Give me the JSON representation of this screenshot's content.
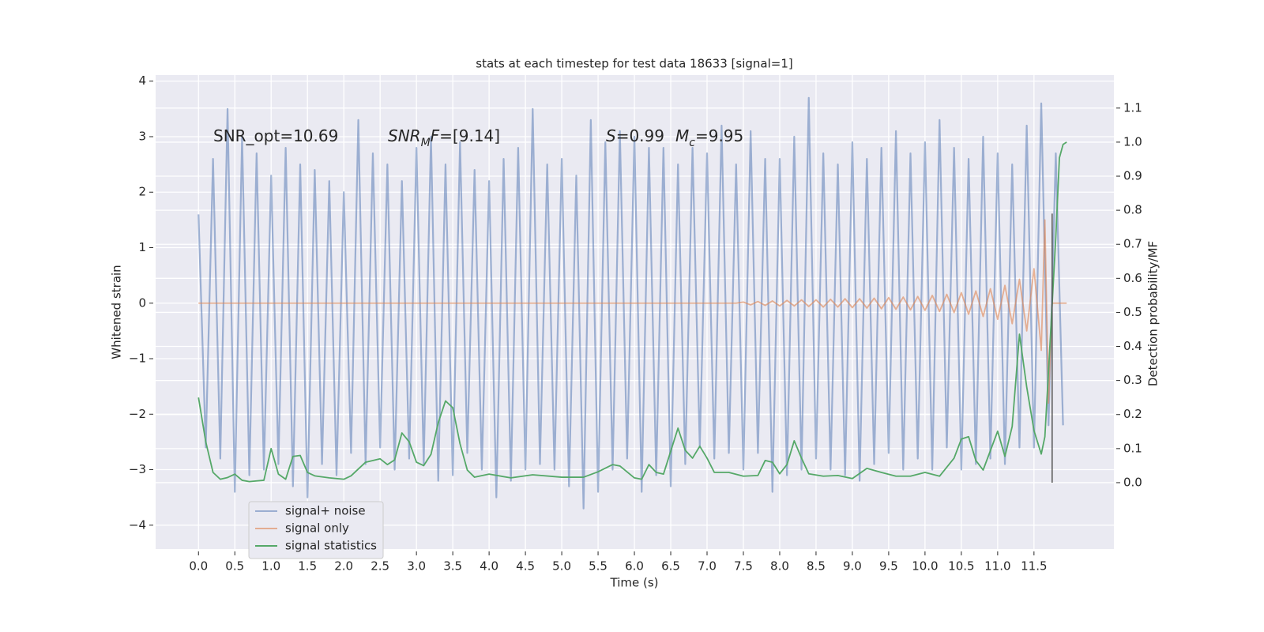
{
  "chart_data": {
    "type": "line",
    "title": "stats at each timestep for test data 18633 [signal=1]",
    "xlabel": "Time (s)",
    "ylabel": "Whitened strain",
    "y2label": "Detection probability/MF",
    "xlim": [
      -0.59,
      12.6
    ],
    "ylim": [
      -4.43,
      4.11
    ],
    "y2lim": [
      -0.195,
      1.197
    ],
    "xticks": [
      {
        "value": 0,
        "label": "0.0"
      },
      0.5,
      {
        "value": 1,
        "label": "1.0"
      },
      1.5,
      {
        "value": 2,
        "label": "2.0"
      },
      2.5,
      {
        "value": 3,
        "label": "3.0"
      },
      3.5,
      {
        "value": 4,
        "label": "4.0"
      },
      4.5,
      {
        "value": 5,
        "label": "5.0"
      },
      5.5,
      {
        "value": 6,
        "label": "6.0"
      },
      6.5,
      {
        "value": 7,
        "label": "7.0"
      },
      7.5,
      {
        "value": 8,
        "label": "8.0"
      },
      8.5,
      {
        "value": 9,
        "label": "9.0"
      },
      9.5,
      {
        "value": 10,
        "label": "10.0"
      },
      10.5,
      {
        "value": 11,
        "label": "11.0"
      },
      11.5
    ],
    "yticks": [
      {
        "value": -4,
        "label": "−4"
      },
      {
        "value": -3,
        "label": "−3"
      },
      {
        "value": -2,
        "label": "−2"
      },
      {
        "value": -1,
        "label": "−1"
      },
      0,
      1,
      2,
      3,
      4
    ],
    "y2ticks": [
      {
        "value": 0,
        "label": "0.0"
      },
      0.1,
      0.2,
      0.3,
      0.4,
      0.5,
      0.6,
      0.7,
      0.8,
      0.9,
      {
        "value": 1,
        "label": "1.0"
      },
      1.1
    ],
    "grid": true,
    "legend": "lower left",
    "series": [
      {
        "name": "signal+ noise",
        "color": "#4c72b0",
        "opacity": 0.5,
        "x": [
          0,
          0.1,
          0.2,
          0.3,
          0.4,
          0.5,
          0.6,
          0.7,
          0.8,
          0.9,
          1,
          1.1,
          1.2,
          1.3,
          1.4,
          1.5,
          1.6,
          1.7,
          1.8,
          1.9,
          2,
          2.1,
          2.2,
          2.3,
          2.4,
          2.5,
          2.6,
          2.7,
          2.8,
          2.9,
          3,
          3.1,
          3.2,
          3.3,
          3.4,
          3.5,
          3.6,
          3.7,
          3.8,
          3.9,
          4,
          4.1,
          4.2,
          4.3,
          4.4,
          4.5,
          4.6,
          4.7,
          4.8,
          4.9,
          5,
          5.1,
          5.2,
          5.3,
          5.4,
          5.5,
          5.6,
          5.7,
          5.8,
          5.9,
          6,
          6.1,
          6.2,
          6.3,
          6.4,
          6.5,
          6.6,
          6.7,
          6.8,
          6.9,
          7,
          7.1,
          7.2,
          7.3,
          7.4,
          7.5,
          7.6,
          7.7,
          7.8,
          7.9,
          8,
          8.1,
          8.2,
          8.3,
          8.4,
          8.5,
          8.6,
          8.7,
          8.8,
          8.9,
          9,
          9.1,
          9.2,
          9.3,
          9.4,
          9.5,
          9.6,
          9.7,
          9.8,
          9.9,
          10,
          10.1,
          10.2,
          10.3,
          10.4,
          10.5,
          10.6,
          10.7,
          10.8,
          10.9,
          11,
          11.1,
          11.2,
          11.3,
          11.4,
          11.5,
          11.6,
          11.7,
          11.8,
          11.9
        ],
        "values": [
          1.6,
          -2.6,
          2.6,
          -2.8,
          3.5,
          -3.4,
          3.0,
          -3.1,
          2.7,
          -3.0,
          2.3,
          -2.9,
          2.8,
          -3.3,
          2.5,
          -3.5,
          2.4,
          -2.9,
          2.2,
          -3.1,
          2.0,
          -2.7,
          3.3,
          -2.9,
          2.7,
          -2.6,
          2.5,
          -3.0,
          2.2,
          -2.8,
          2.8,
          -2.9,
          3.0,
          -3.2,
          2.5,
          -3.1,
          2.9,
          -2.7,
          2.4,
          -3.0,
          2.2,
          -3.5,
          2.6,
          -3.2,
          2.8,
          -3.0,
          3.5,
          -2.9,
          2.5,
          -3.0,
          2.6,
          -3.3,
          2.3,
          -3.7,
          3.3,
          -3.4,
          2.9,
          -3.0,
          3.1,
          -2.8,
          3.0,
          -3.4,
          2.8,
          -3.1,
          2.8,
          -3.3,
          2.5,
          -2.9,
          2.8,
          -2.6,
          2.7,
          -2.8,
          3.2,
          -2.7,
          2.5,
          -3.0,
          3.1,
          -2.7,
          2.6,
          -3.4,
          2.6,
          -3.1,
          3.0,
          -3.0,
          3.7,
          -2.8,
          2.7,
          -3.0,
          2.5,
          -3.1,
          2.9,
          -3.2,
          2.6,
          -2.9,
          2.8,
          -2.7,
          3.1,
          -3.0,
          2.7,
          -2.8,
          2.9,
          -3.0,
          3.3,
          -2.6,
          2.8,
          -3.0,
          2.6,
          -2.9,
          3.0,
          -2.8,
          2.7,
          -2.9,
          2.5,
          -2.6,
          3.2,
          -2.6,
          3.6,
          -2.2,
          2.7,
          -2.2
        ]
      },
      {
        "name": "signal only",
        "color": "#dd8452",
        "opacity": 0.6,
        "x": [
          0,
          7.4,
          7.5,
          7.6,
          7.7,
          7.8,
          7.9,
          8.0,
          8.1,
          8.2,
          8.3,
          8.4,
          8.5,
          8.6,
          8.7,
          8.8,
          8.9,
          9.0,
          9.1,
          9.2,
          9.3,
          9.4,
          9.5,
          9.6,
          9.7,
          9.8,
          9.9,
          10.0,
          10.1,
          10.2,
          10.3,
          10.4,
          10.5,
          10.6,
          10.7,
          10.8,
          10.9,
          11.0,
          11.1,
          11.2,
          11.3,
          11.4,
          11.5,
          11.6,
          11.65,
          11.7,
          11.75,
          11.95
        ],
        "values": [
          0,
          0,
          0.02,
          -0.03,
          0.03,
          -0.04,
          0.04,
          -0.05,
          0.05,
          -0.05,
          0.06,
          -0.06,
          0.06,
          -0.07,
          0.07,
          -0.07,
          0.08,
          -0.08,
          0.08,
          -0.09,
          0.09,
          -0.1,
          0.1,
          -0.11,
          0.11,
          -0.12,
          0.12,
          -0.13,
          0.14,
          -0.15,
          0.16,
          -0.17,
          0.19,
          -0.2,
          0.22,
          -0.24,
          0.26,
          -0.29,
          0.32,
          -0.37,
          0.43,
          -0.5,
          0.62,
          -0.85,
          1.5,
          -1.8,
          0,
          0
        ]
      },
      {
        "name": "signal statistics",
        "color": "#55a868",
        "opacity": 1,
        "axis": "y2",
        "x": [
          0,
          0.1,
          0.2,
          0.3,
          0.4,
          0.5,
          0.6,
          0.7,
          0.8,
          0.9,
          1.0,
          1.1,
          1.2,
          1.3,
          1.4,
          1.5,
          1.6,
          1.8,
          2.0,
          2.1,
          2.3,
          2.5,
          2.6,
          2.7,
          2.8,
          2.9,
          3.0,
          3.1,
          3.2,
          3.3,
          3.4,
          3.5,
          3.6,
          3.7,
          3.8,
          4.0,
          4.3,
          4.6,
          5.0,
          5.3,
          5.5,
          5.7,
          5.8,
          6.0,
          6.1,
          6.2,
          6.3,
          6.4,
          6.6,
          6.7,
          6.8,
          6.9,
          7.0,
          7.1,
          7.3,
          7.5,
          7.7,
          7.8,
          7.9,
          8.0,
          8.1,
          8.2,
          8.3,
          8.4,
          8.6,
          8.8,
          9.0,
          9.2,
          9.4,
          9.6,
          9.8,
          10.0,
          10.2,
          10.4,
          10.5,
          10.6,
          10.7,
          10.8,
          11.0,
          11.1,
          11.2,
          11.3,
          11.4,
          11.5,
          11.6,
          11.65,
          11.7,
          11.8,
          11.85,
          11.9,
          11.95
        ],
        "values": [
          0.25,
          0.12,
          0.03,
          0.01,
          0.015,
          0.025,
          0.007,
          0.003,
          0.005,
          0.007,
          0.1,
          0.025,
          0.01,
          0.077,
          0.08,
          0.03,
          0.02,
          0.014,
          0.01,
          0.02,
          0.06,
          0.07,
          0.053,
          0.067,
          0.146,
          0.12,
          0.06,
          0.05,
          0.083,
          0.176,
          0.24,
          0.22,
          0.114,
          0.037,
          0.016,
          0.025,
          0.014,
          0.023,
          0.016,
          0.016,
          0.032,
          0.053,
          0.049,
          0.014,
          0.01,
          0.053,
          0.03,
          0.025,
          0.16,
          0.095,
          0.072,
          0.107,
          0.072,
          0.03,
          0.03,
          0.019,
          0.021,
          0.065,
          0.06,
          0.026,
          0.053,
          0.123,
          0.072,
          0.026,
          0.019,
          0.021,
          0.012,
          0.042,
          0.03,
          0.019,
          0.019,
          0.03,
          0.019,
          0.072,
          0.128,
          0.135,
          0.065,
          0.037,
          0.151,
          0.077,
          0.165,
          0.436,
          0.281,
          0.153,
          0.084,
          0.135,
          0.327,
          0.72,
          0.954,
          0.993,
          1.0
        ]
      }
    ],
    "vline": {
      "x": 11.75,
      "y2": [
        0,
        0.79
      ],
      "color": "#555555"
    },
    "annotations": [
      [
        {
          "text": "SNR_opt=10.69"
        }
      ],
      [
        {
          "text": "SNR",
          "italic": true
        },
        {
          "text": "M",
          "italic": true,
          "sub": true
        },
        {
          "text": "F",
          "italic": true
        },
        {
          "text": "=[9.14]"
        }
      ],
      [
        {
          "text": "S",
          "italic": true
        },
        {
          "text": "=0.99"
        },
        {
          "text": "M",
          "italic": true
        },
        {
          "text": "c",
          "italic": true,
          "sub": true
        },
        {
          "text": "=9.95"
        }
      ]
    ]
  }
}
